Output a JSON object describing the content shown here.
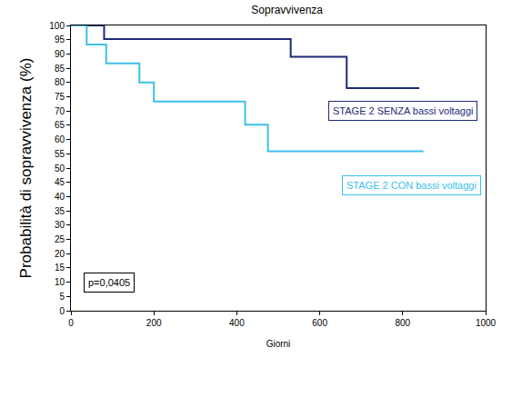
{
  "chart_data": {
    "type": "line",
    "line_style": "step",
    "title": "Sopravvivenza",
    "x_label": "Giorni",
    "y_label": "Probabilità di sopravvivenza (%)",
    "annotations": [
      "p=0,0405"
    ],
    "series": [
      {
        "name": "STAGE 2 SENZA bassi voltaggi",
        "color": "#1f2a78",
        "x": [
          0,
          80,
          530,
          665,
          840
        ],
        "values": [
          100,
          95.2,
          89,
          78,
          78
        ]
      },
      {
        "name": "STAGE 2 CON bassi voltaggi",
        "color": "#3cc0ea",
        "x": [
          0,
          38,
          85,
          165,
          200,
          420,
          475,
          850
        ],
        "values": [
          100,
          93.3,
          86.7,
          80,
          73.3,
          65.2,
          55.9,
          55.9
        ]
      }
    ],
    "xlim": [
      0,
      1000
    ],
    "xticks": [
      0,
      200,
      400,
      600,
      800,
      1000
    ],
    "ylim": [
      0,
      100
    ],
    "yticks": [
      0,
      5,
      10,
      15,
      20,
      25,
      30,
      35,
      40,
      45,
      50,
      55,
      60,
      65,
      70,
      75,
      80,
      85,
      90,
      95,
      100
    ],
    "grid": false,
    "legend": "right"
  }
}
